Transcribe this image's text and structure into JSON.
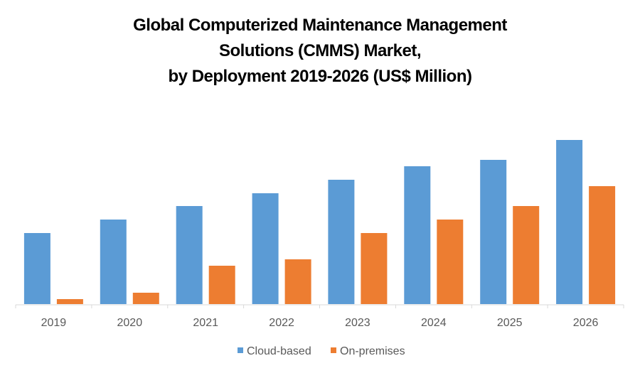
{
  "chart_data": {
    "type": "bar",
    "title": [
      "Global Computerized Maintenance Management",
      "Solutions (CMMS) Market,",
      "by Deployment 2019-2026 (US$ Million)"
    ],
    "xlabel": "",
    "ylabel": "",
    "categories": [
      "2019",
      "2020",
      "2021",
      "2022",
      "2023",
      "2024",
      "2025",
      "2026"
    ],
    "series": [
      {
        "name": "Cloud-based",
        "color": "#5B9BD5",
        "values": [
          100,
          119,
          138,
          156,
          175,
          194,
          203,
          231
        ]
      },
      {
        "name": "On-premises",
        "color": "#ED7D31",
        "values": [
          7,
          16,
          54,
          63,
          100,
          119,
          138,
          166
        ]
      }
    ],
    "ylim": [
      0,
      240
    ],
    "grid": false,
    "legend": "bottom"
  }
}
